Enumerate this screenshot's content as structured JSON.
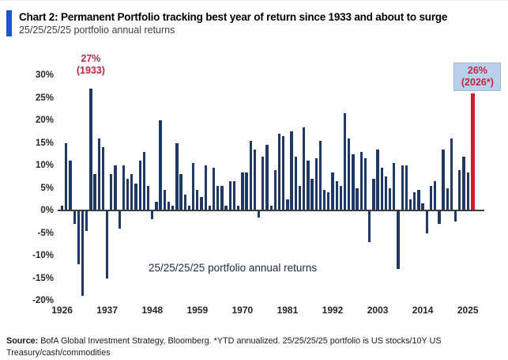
{
  "header": {
    "title": "Chart 2: Permanent Portfolio tracking best year of return since 1933 and about to surge",
    "subtitle": "25/25/25/25 portfolio annual returns",
    "accent_color": "#1f57c8"
  },
  "chart_data": {
    "type": "bar",
    "title": "25/25/25/25 portfolio annual returns",
    "inner_label": "25/25/25/25 portfolio annual returns",
    "start_year": 1926,
    "end_year": 2026,
    "x_tick_years": [
      1926,
      1937,
      1948,
      1959,
      1970,
      1981,
      1992,
      2003,
      2014,
      2025
    ],
    "y_tick_labels": [
      "30%",
      "25%",
      "20%",
      "15%",
      "10%",
      "5%",
      "0%",
      "-5%",
      "-10%",
      "-15%",
      "-20%"
    ],
    "ylim": [
      -20,
      30
    ],
    "grid": false,
    "legend": false,
    "bar_color": "#1f3864",
    "highlight_color": "#cb1f2f",
    "highlight_year": 2026,
    "years": [
      1926,
      1927,
      1928,
      1929,
      1930,
      1931,
      1932,
      1933,
      1934,
      1935,
      1936,
      1937,
      1938,
      1939,
      1940,
      1941,
      1942,
      1943,
      1944,
      1945,
      1946,
      1947,
      1948,
      1949,
      1950,
      1951,
      1952,
      1953,
      1954,
      1955,
      1956,
      1957,
      1958,
      1959,
      1960,
      1961,
      1962,
      1963,
      1964,
      1965,
      1966,
      1967,
      1968,
      1969,
      1970,
      1971,
      1972,
      1973,
      1974,
      1975,
      1976,
      1977,
      1978,
      1979,
      1980,
      1981,
      1982,
      1983,
      1984,
      1985,
      1986,
      1987,
      1988,
      1989,
      1990,
      1991,
      1992,
      1993,
      1994,
      1995,
      1996,
      1997,
      1998,
      1999,
      2000,
      2001,
      2002,
      2003,
      2004,
      2005,
      2006,
      2007,
      2008,
      2009,
      2010,
      2011,
      2012,
      2013,
      2014,
      2015,
      2016,
      2017,
      2018,
      2019,
      2020,
      2021,
      2022,
      2023,
      2024,
      2025,
      2026
    ],
    "values": [
      1,
      15,
      11,
      -3,
      -12,
      -19,
      -4.5,
      27,
      8,
      16,
      14,
      -15,
      8,
      10,
      -4,
      10,
      7,
      8,
      6,
      11,
      13,
      5.5,
      -2,
      2,
      20,
      4.5,
      2,
      1,
      15,
      8,
      3.5,
      1,
      10.5,
      4.5,
      3,
      10,
      1,
      9.5,
      5.5,
      5.5,
      1,
      6.5,
      6.5,
      1,
      8.5,
      8.5,
      15.5,
      13.5,
      -1.5,
      12,
      14.5,
      1,
      9,
      17,
      16.5,
      2.5,
      17.5,
      12,
      5.5,
      18.5,
      11,
      7,
      11.5,
      15.5,
      4.5,
      4,
      8.5,
      6.5,
      5.5,
      21.5,
      16,
      12.5,
      5,
      13,
      11.5,
      -7,
      7,
      13.5,
      9.5,
      7.5,
      5,
      10.5,
      -13,
      10,
      10,
      2.5,
      4,
      4.5,
      1.5,
      -5,
      5.5,
      6.5,
      -3,
      13.5,
      5,
      16,
      -2.5,
      9,
      12,
      8.5,
      26
    ],
    "annotations": [
      {
        "line1": "27%",
        "line2": "(1933)",
        "year": 1933,
        "text_color": "#c22742",
        "box": false
      },
      {
        "line1": "26%",
        "line2": "(2026*)",
        "year": 2026,
        "text_color": "#c22742",
        "box": true,
        "box_bg": "#bad0e8"
      }
    ]
  },
  "footer": {
    "source_label": "Source:",
    "source_text": " BofA Global Investment Strategy, Bloomberg. *YTD annualized. 25/25/25/25 portfolio is US stocks/10Y US Treasury/cash/commodities"
  }
}
